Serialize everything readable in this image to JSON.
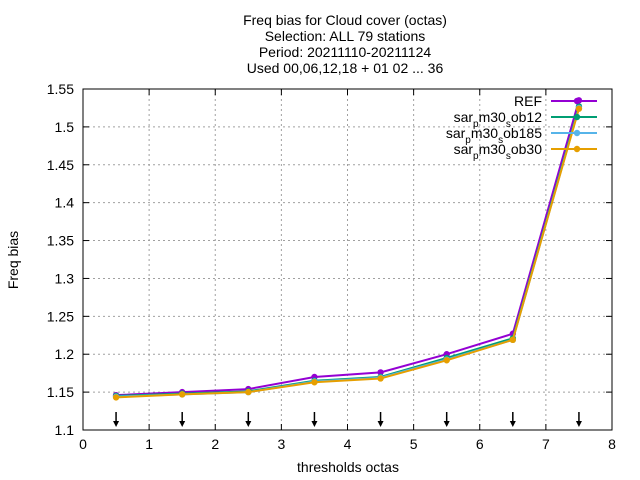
{
  "chart_data": {
    "type": "line",
    "title_lines": [
      "Freq bias  for Cloud cover (octas)",
      "Selection: ALL     79 stations",
      "Period: 20211110-20211124",
      "Used 00,06,12,18 + 01 02 ... 36"
    ],
    "xlabel": "thresholds octas",
    "ylabel": "Freq bias",
    "xlim": [
      0,
      8
    ],
    "ylim": [
      1.1,
      1.55
    ],
    "x_ticks": [
      "0",
      "1",
      "2",
      "3",
      "4",
      "5",
      "6",
      "7",
      "8"
    ],
    "y_ticks": [
      "1.1",
      "1.15",
      "1.2",
      "1.25",
      "1.3",
      "1.35",
      "1.4",
      "1.45",
      "1.5",
      "1.55"
    ],
    "grid": true,
    "legend_position": "top-right",
    "x": [
      0.5,
      1.5,
      2.5,
      3.5,
      4.5,
      5.5,
      6.5,
      7.5
    ],
    "series": [
      {
        "name": "REF",
        "color": "#9400d3",
        "marker": "circle",
        "values": [
          1.146,
          1.15,
          1.154,
          1.17,
          1.176,
          1.2,
          1.227,
          1.535
        ]
      },
      {
        "name": "sar_p m30_s ob12",
        "name_parts": [
          "sar",
          "p",
          "m30",
          "s",
          "ob12"
        ],
        "color": "#009e73",
        "marker": "circle",
        "values": [
          1.145,
          1.148,
          1.151,
          1.165,
          1.17,
          1.195,
          1.221,
          1.527
        ]
      },
      {
        "name": "sar_p m30_s ob185",
        "name_parts": [
          "sar",
          "p",
          "m30",
          "s",
          "ob185"
        ],
        "color": "#56b4e9",
        "marker": "circle",
        "values": [
          1.144,
          1.147,
          1.15,
          1.164,
          1.169,
          1.193,
          1.219,
          1.525
        ]
      },
      {
        "name": "sar_p m30_s ob30",
        "name_parts": [
          "sar",
          "p",
          "m30",
          "s",
          "ob30"
        ],
        "color": "#e69f00",
        "marker": "circle",
        "values": [
          1.143,
          1.147,
          1.15,
          1.163,
          1.168,
          1.192,
          1.219,
          1.524
        ]
      }
    ],
    "arrows_at_x": [
      0.5,
      1.5,
      2.5,
      3.5,
      4.5,
      5.5,
      6.5,
      7.5
    ]
  }
}
